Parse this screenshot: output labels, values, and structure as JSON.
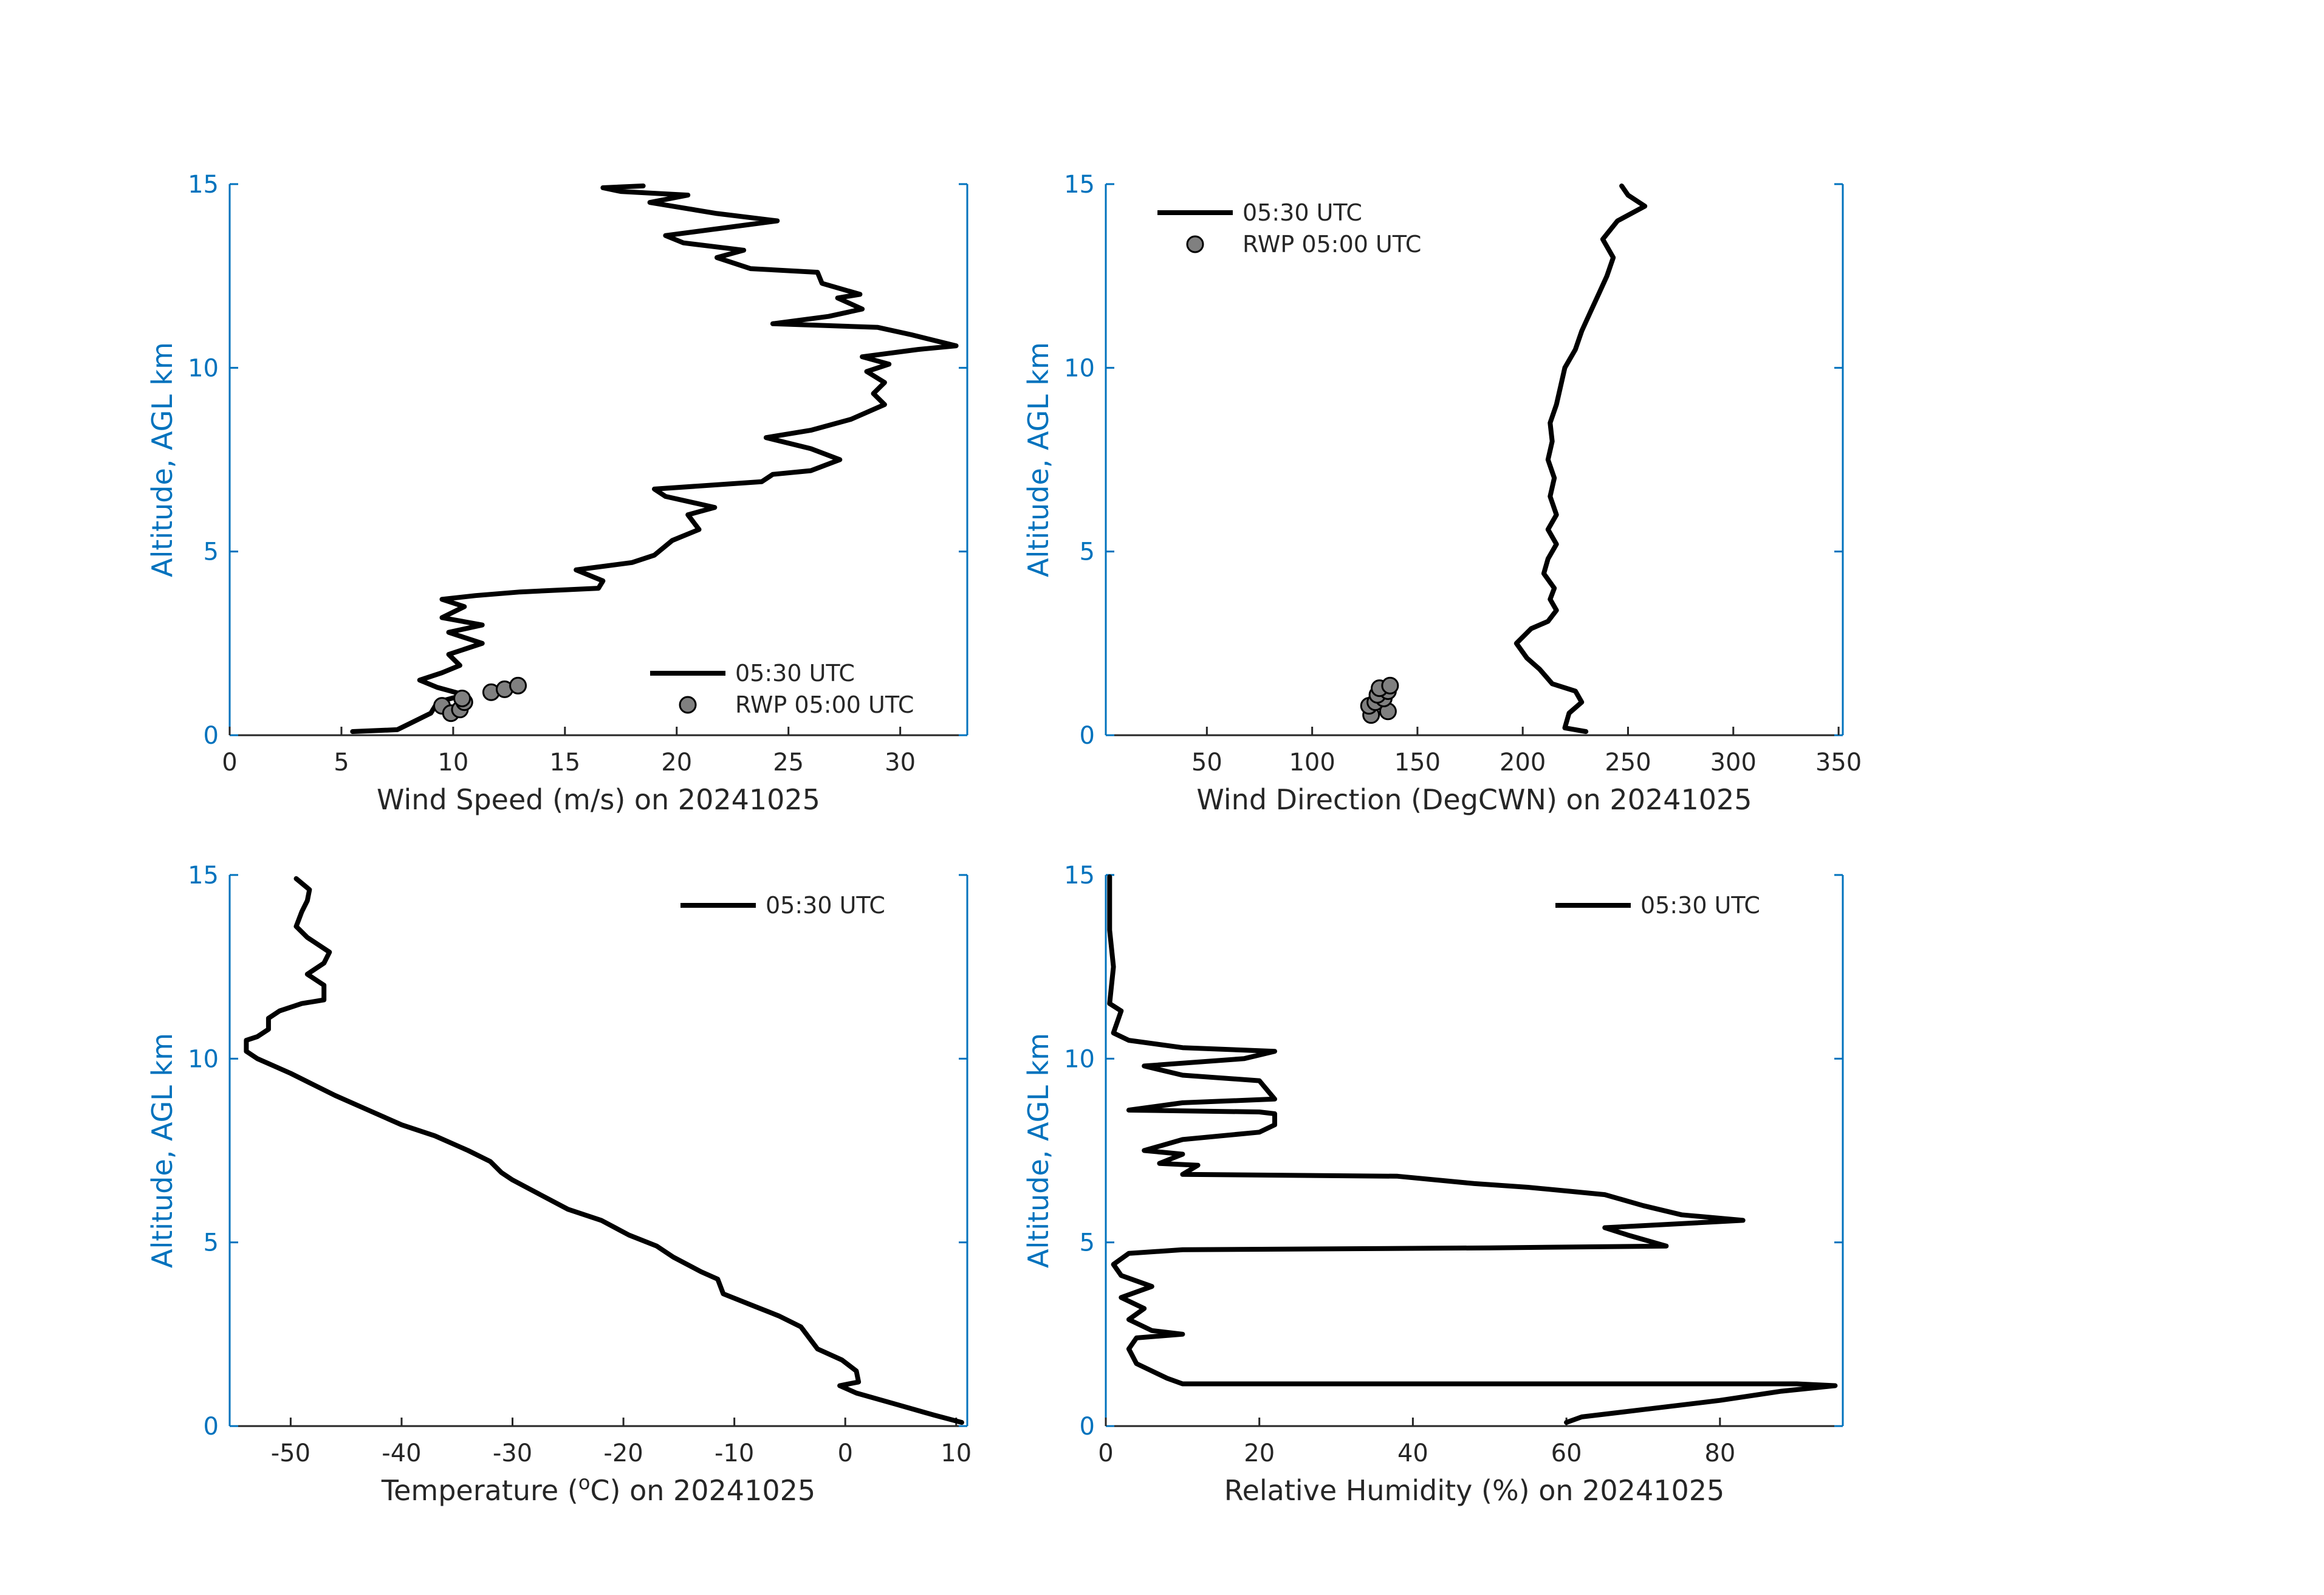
{
  "chart_data": [
    {
      "id": "wind-speed",
      "type": "line",
      "xlabel": "Wind Speed (m/s) on 20241025",
      "ylabel": "Altitude, AGL km",
      "xlim": [
        0,
        33
      ],
      "ylim": [
        0,
        15
      ],
      "xticks": [
        0,
        5,
        10,
        15,
        20,
        25,
        30
      ],
      "yticks": [
        0,
        5,
        10,
        15
      ],
      "legend": {
        "position": "bottom-right",
        "entries": [
          "05:30 UTC",
          "RWP 05:00 UTC"
        ]
      },
      "series": [
        {
          "name": "05:30 UTC",
          "style": "line",
          "points": [
            [
              5.5,
              0.1
            ],
            [
              7.5,
              0.15
            ],
            [
              8,
              0.3
            ],
            [
              9,
              0.6
            ],
            [
              9.3,
              0.9
            ],
            [
              10.5,
              1.1
            ],
            [
              9.3,
              1.3
            ],
            [
              8.5,
              1.5
            ],
            [
              9.5,
              1.7
            ],
            [
              10.3,
              1.9
            ],
            [
              9.8,
              2.2
            ],
            [
              11.3,
              2.5
            ],
            [
              9.8,
              2.8
            ],
            [
              11.3,
              3
            ],
            [
              9.5,
              3.2
            ],
            [
              10.5,
              3.5
            ],
            [
              9.5,
              3.7
            ],
            [
              11,
              3.8
            ],
            [
              13,
              3.9
            ],
            [
              16.5,
              4
            ],
            [
              16.7,
              4.2
            ],
            [
              15.5,
              4.5
            ],
            [
              18,
              4.7
            ],
            [
              19,
              4.9
            ],
            [
              19.8,
              5.3
            ],
            [
              21,
              5.6
            ],
            [
              20.5,
              6
            ],
            [
              21.7,
              6.2
            ],
            [
              19.5,
              6.5
            ],
            [
              19,
              6.7
            ],
            [
              23.8,
              6.9
            ],
            [
              24.3,
              7.1
            ],
            [
              26,
              7.2
            ],
            [
              27.3,
              7.5
            ],
            [
              26,
              7.8
            ],
            [
              24,
              8.1
            ],
            [
              26,
              8.3
            ],
            [
              27.8,
              8.6
            ],
            [
              29.3,
              9
            ],
            [
              28.8,
              9.3
            ],
            [
              29.3,
              9.6
            ],
            [
              28.5,
              9.9
            ],
            [
              29.5,
              10.1
            ],
            [
              28.3,
              10.3
            ],
            [
              30.8,
              10.5
            ],
            [
              32.5,
              10.6
            ],
            [
              30.5,
              10.9
            ],
            [
              29,
              11.1
            ],
            [
              24.3,
              11.2
            ],
            [
              26.8,
              11.4
            ],
            [
              28.3,
              11.6
            ],
            [
              27.2,
              11.9
            ],
            [
              28.2,
              12
            ],
            [
              26.5,
              12.3
            ],
            [
              26.3,
              12.6
            ],
            [
              23.3,
              12.7
            ],
            [
              21.8,
              13
            ],
            [
              23,
              13.2
            ],
            [
              20.3,
              13.4
            ],
            [
              19.5,
              13.6
            ],
            [
              22,
              13.8
            ],
            [
              24.5,
              14
            ],
            [
              21.8,
              14.2
            ],
            [
              18.8,
              14.5
            ],
            [
              20.5,
              14.7
            ],
            [
              17.5,
              14.8
            ],
            [
              16.7,
              14.9
            ],
            [
              18.5,
              14.95
            ]
          ]
        },
        {
          "name": "RWP 05:00 UTC",
          "style": "markers",
          "points": [
            [
              9.5,
              0.8
            ],
            [
              9.9,
              0.6
            ],
            [
              10.3,
              0.7
            ],
            [
              10.5,
              0.9
            ],
            [
              10.4,
              1.0
            ],
            [
              11.7,
              1.17
            ],
            [
              12.3,
              1.25
            ],
            [
              12.9,
              1.35
            ]
          ]
        }
      ]
    },
    {
      "id": "wind-direction",
      "type": "line",
      "xlabel": "Wind Direction (DegCWN) on 20241025",
      "ylabel": "Altitude, AGL km",
      "xlim": [
        2,
        352
      ],
      "ylim": [
        0,
        15
      ],
      "xticks": [
        50,
        100,
        150,
        200,
        250,
        300,
        350
      ],
      "yticks": [
        0,
        5,
        10,
        15
      ],
      "legend": {
        "position": "top-left",
        "entries": [
          "05:30 UTC",
          "RWP 05:00 UTC"
        ]
      },
      "series": [
        {
          "name": "05:30 UTC",
          "style": "line",
          "points": [
            [
              230,
              0.1
            ],
            [
              220,
              0.2
            ],
            [
              222,
              0.6
            ],
            [
              228,
              0.9
            ],
            [
              225,
              1.2
            ],
            [
              214,
              1.4
            ],
            [
              208,
              1.8
            ],
            [
              202,
              2.1
            ],
            [
              197,
              2.5
            ],
            [
              204,
              2.9
            ],
            [
              212,
              3.1
            ],
            [
              216,
              3.4
            ],
            [
              213,
              3.7
            ],
            [
              215,
              4
            ],
            [
              210,
              4.4
            ],
            [
              212,
              4.8
            ],
            [
              216,
              5.2
            ],
            [
              212,
              5.6
            ],
            [
              216,
              6
            ],
            [
              213,
              6.5
            ],
            [
              215,
              7
            ],
            [
              212,
              7.5
            ],
            [
              214,
              8
            ],
            [
              213,
              8.5
            ],
            [
              216,
              9
            ],
            [
              218,
              9.5
            ],
            [
              220,
              10
            ],
            [
              225,
              10.5
            ],
            [
              228,
              11
            ],
            [
              232,
              11.5
            ],
            [
              236,
              12
            ],
            [
              240,
              12.5
            ],
            [
              243,
              13
            ],
            [
              238,
              13.5
            ],
            [
              245,
              14
            ],
            [
              258,
              14.4
            ],
            [
              250,
              14.7
            ],
            [
              247,
              14.95
            ]
          ]
        },
        {
          "name": "RWP 05:00 UTC",
          "style": "markers",
          "points": [
            [
              128,
              0.55
            ],
            [
              136,
              0.65
            ],
            [
              127,
              0.8
            ],
            [
              130,
              0.9
            ],
            [
              134,
              1.0
            ],
            [
              131,
              1.1
            ],
            [
              136,
              1.2
            ],
            [
              132,
              1.28
            ],
            [
              137,
              1.35
            ]
          ]
        }
      ]
    },
    {
      "id": "temperature",
      "type": "line",
      "xlabel": "Temperature (°C) on 20241025",
      "ylabel": "Altitude, AGL km",
      "xlim": [
        -55.5,
        11
      ],
      "ylim": [
        0,
        15
      ],
      "xticks": [
        -50,
        -40,
        -30,
        -20,
        -10,
        0,
        10
      ],
      "yticks": [
        0,
        5,
        10,
        15
      ],
      "legend": {
        "position": "top-right",
        "entries": [
          "05:30 UTC"
        ]
      },
      "series": [
        {
          "name": "05:30 UTC",
          "style": "line",
          "points": [
            [
              10.5,
              0.1
            ],
            [
              8,
              0.3
            ],
            [
              4.5,
              0.6
            ],
            [
              1,
              0.9
            ],
            [
              -0.5,
              1.1
            ],
            [
              1.2,
              1.2
            ],
            [
              1,
              1.5
            ],
            [
              -0.3,
              1.8
            ],
            [
              -2.5,
              2.1
            ],
            [
              -3.5,
              2.5
            ],
            [
              -4,
              2.7
            ],
            [
              -6,
              3
            ],
            [
              -8.5,
              3.3
            ],
            [
              -11,
              3.6
            ],
            [
              -11.5,
              4
            ],
            [
              -13,
              4.2
            ],
            [
              -15.5,
              4.6
            ],
            [
              -17,
              4.9
            ],
            [
              -19.5,
              5.2
            ],
            [
              -22,
              5.6
            ],
            [
              -25,
              5.9
            ],
            [
              -27.5,
              6.3
            ],
            [
              -30,
              6.7
            ],
            [
              -31,
              6.9
            ],
            [
              -32,
              7.2
            ],
            [
              -34,
              7.5
            ],
            [
              -37,
              7.9
            ],
            [
              -40,
              8.2
            ],
            [
              -43,
              8.6
            ],
            [
              -46,
              9
            ],
            [
              -48,
              9.3
            ],
            [
              -50,
              9.6
            ],
            [
              -51.5,
              9.8
            ],
            [
              -53,
              10
            ],
            [
              -54,
              10.2
            ],
            [
              -54,
              10.5
            ],
            [
              -53,
              10.6
            ],
            [
              -52,
              10.8
            ],
            [
              -52,
              11.1
            ],
            [
              -51,
              11.3
            ],
            [
              -49,
              11.5
            ],
            [
              -47,
              11.6
            ],
            [
              -47,
              12
            ],
            [
              -48.5,
              12.3
            ],
            [
              -47,
              12.6
            ],
            [
              -46.5,
              12.9
            ],
            [
              -48.5,
              13.3
            ],
            [
              -49.5,
              13.6
            ],
            [
              -49,
              14
            ],
            [
              -48.5,
              14.3
            ],
            [
              -48.3,
              14.6
            ],
            [
              -49.5,
              14.9
            ]
          ]
        }
      ]
    },
    {
      "id": "relative-humidity",
      "type": "line",
      "xlabel": "Relative Humidity (%) on 20241025",
      "ylabel": "Altitude, AGL km",
      "xlim": [
        0,
        96
      ],
      "ylim": [
        0,
        15
      ],
      "xticks": [
        0,
        20,
        40,
        60,
        80
      ],
      "yticks": [
        0,
        5,
        10,
        15
      ],
      "legend": {
        "position": "top-right",
        "entries": [
          "05:30 UTC"
        ]
      },
      "series": [
        {
          "name": "05:30 UTC",
          "style": "line",
          "points": [
            [
              60,
              0.1
            ],
            [
              62,
              0.25
            ],
            [
              70,
              0.45
            ],
            [
              80,
              0.7
            ],
            [
              88,
              0.95
            ],
            [
              95,
              1.1
            ],
            [
              90,
              1.15
            ],
            [
              10,
              1.15
            ],
            [
              8,
              1.3
            ],
            [
              4,
              1.7
            ],
            [
              3,
              2.1
            ],
            [
              4,
              2.4
            ],
            [
              10,
              2.5
            ],
            [
              6,
              2.6
            ],
            [
              3,
              2.9
            ],
            [
              5,
              3.2
            ],
            [
              2,
              3.5
            ],
            [
              6,
              3.8
            ],
            [
              2,
              4.1
            ],
            [
              1,
              4.4
            ],
            [
              3,
              4.7
            ],
            [
              10,
              4.8
            ],
            [
              50,
              4.85
            ],
            [
              73,
              4.9
            ],
            [
              68,
              5.2
            ],
            [
              65,
              5.4
            ],
            [
              83,
              5.6
            ],
            [
              75,
              5.75
            ],
            [
              70,
              6
            ],
            [
              65,
              6.3
            ],
            [
              60,
              6.4
            ],
            [
              55,
              6.5
            ],
            [
              48,
              6.6
            ],
            [
              38,
              6.8
            ],
            [
              10,
              6.85
            ],
            [
              12,
              7.1
            ],
            [
              7,
              7.15
            ],
            [
              10,
              7.4
            ],
            [
              5,
              7.5
            ],
            [
              10,
              7.8
            ],
            [
              20,
              8
            ],
            [
              22,
              8.2
            ],
            [
              22,
              8.5
            ],
            [
              20,
              8.55
            ],
            [
              3,
              8.6
            ],
            [
              10,
              8.8
            ],
            [
              22,
              8.9
            ],
            [
              20,
              9.4
            ],
            [
              10,
              9.55
            ],
            [
              5,
              9.8
            ],
            [
              18,
              10
            ],
            [
              22,
              10.2
            ],
            [
              10,
              10.3
            ],
            [
              3,
              10.5
            ],
            [
              1,
              10.7
            ],
            [
              2,
              11.3
            ],
            [
              0.5,
              11.5
            ],
            [
              1,
              12.5
            ],
            [
              0.5,
              13.5
            ],
            [
              0.5,
              14.95
            ]
          ]
        }
      ]
    }
  ]
}
